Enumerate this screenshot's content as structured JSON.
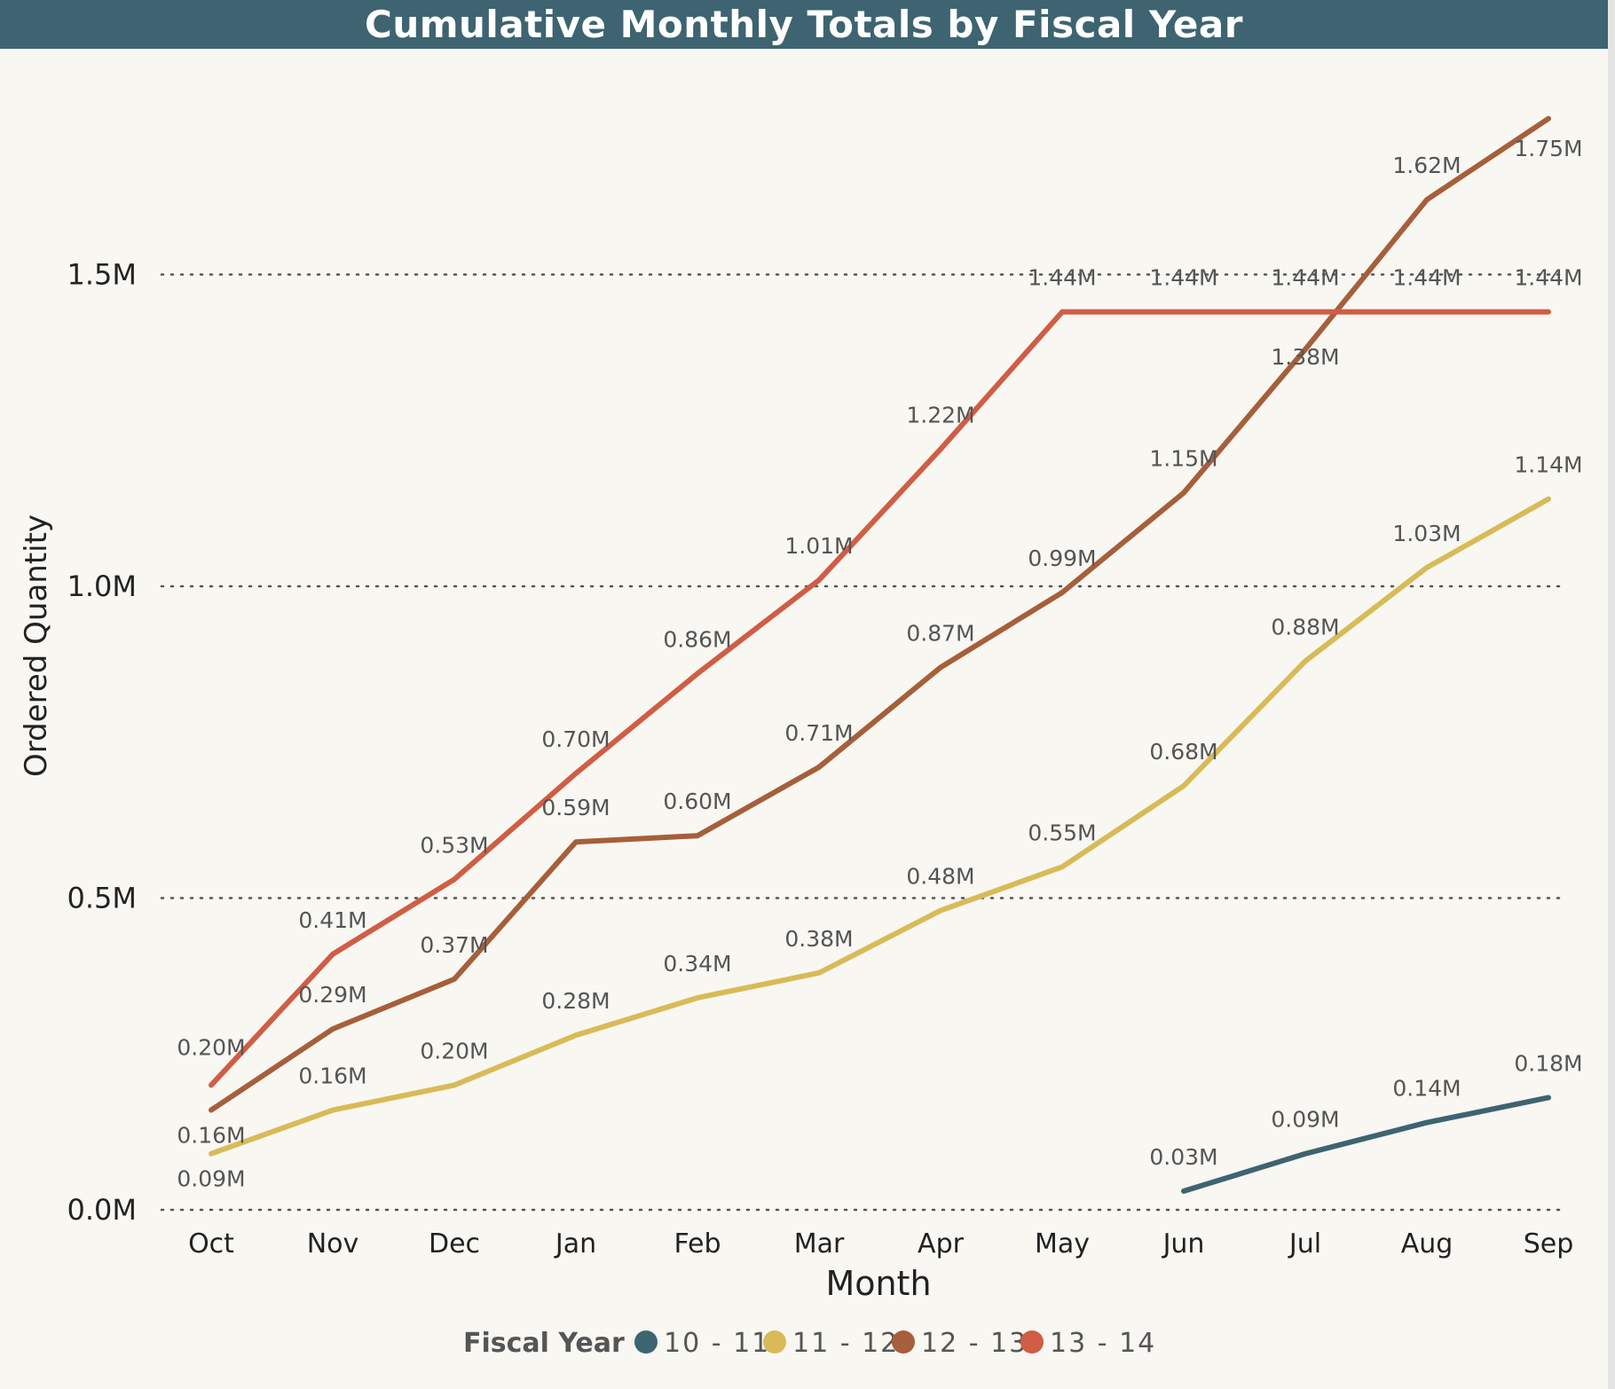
{
  "chart_data": {
    "type": "line",
    "title": "Cumulative Monthly Totals by Fiscal Year",
    "xlabel": "Month",
    "ylabel": "Ordered Quantity",
    "categories": [
      "Oct",
      "Nov",
      "Dec",
      "Jan",
      "Feb",
      "Mar",
      "Apr",
      "May",
      "Jun",
      "Jul",
      "Aug",
      "Sep"
    ],
    "ylim": [
      0,
      1.8
    ],
    "yticks": [
      0,
      0.5,
      1.0,
      1.5
    ],
    "ytick_labels": [
      "0.0M",
      "0.5M",
      "1.0M",
      "1.5M"
    ],
    "grid": true,
    "legend": {
      "title": "Fiscal Year",
      "position": "bottom"
    },
    "series": [
      {
        "name": "10-11",
        "legend_label": "10 - 11",
        "color": "#3d6470",
        "values": [
          null,
          null,
          null,
          null,
          null,
          null,
          null,
          null,
          0.03,
          0.09,
          0.14,
          0.18
        ],
        "labels": [
          null,
          null,
          null,
          null,
          null,
          null,
          null,
          null,
          "0.03M",
          "0.09M",
          "0.14M",
          "0.18M"
        ]
      },
      {
        "name": "11-12",
        "legend_label": "11 - 12",
        "color": "#d8bb57",
        "values": [
          0.09,
          0.16,
          0.2,
          0.28,
          0.34,
          0.38,
          0.48,
          0.55,
          0.68,
          0.88,
          1.03,
          1.14
        ],
        "labels": [
          "0.09M",
          "0.16M",
          "0.20M",
          "0.28M",
          "0.34M",
          "0.38M",
          "0.48M",
          "0.55M",
          "0.68M",
          "0.88M",
          "1.03M",
          "1.14M"
        ]
      },
      {
        "name": "12-13",
        "legend_label": "12 - 13",
        "color": "#a65f3a",
        "values": [
          0.16,
          0.29,
          0.37,
          0.59,
          0.6,
          0.71,
          0.87,
          0.99,
          1.15,
          1.38,
          1.62,
          1.75
        ],
        "labels": [
          "0.16M",
          "0.29M",
          "0.37M",
          "0.59M",
          "0.60M",
          "0.71M",
          "0.87M",
          "0.99M",
          "1.15M",
          "1.38M",
          "1.62M",
          "1.75M"
        ]
      },
      {
        "name": "13-14",
        "legend_label": "13 - 14",
        "color": "#d05d45",
        "values": [
          0.2,
          0.41,
          0.53,
          0.7,
          0.86,
          1.01,
          1.22,
          1.44,
          1.44,
          1.44,
          1.44,
          1.44
        ],
        "labels": [
          "0.20M",
          "0.41M",
          "0.53M",
          "0.70M",
          "0.86M",
          "1.01M",
          "1.22M",
          "1.44M",
          "1.44M",
          "1.44M",
          "1.44M",
          "1.44M"
        ]
      }
    ]
  }
}
